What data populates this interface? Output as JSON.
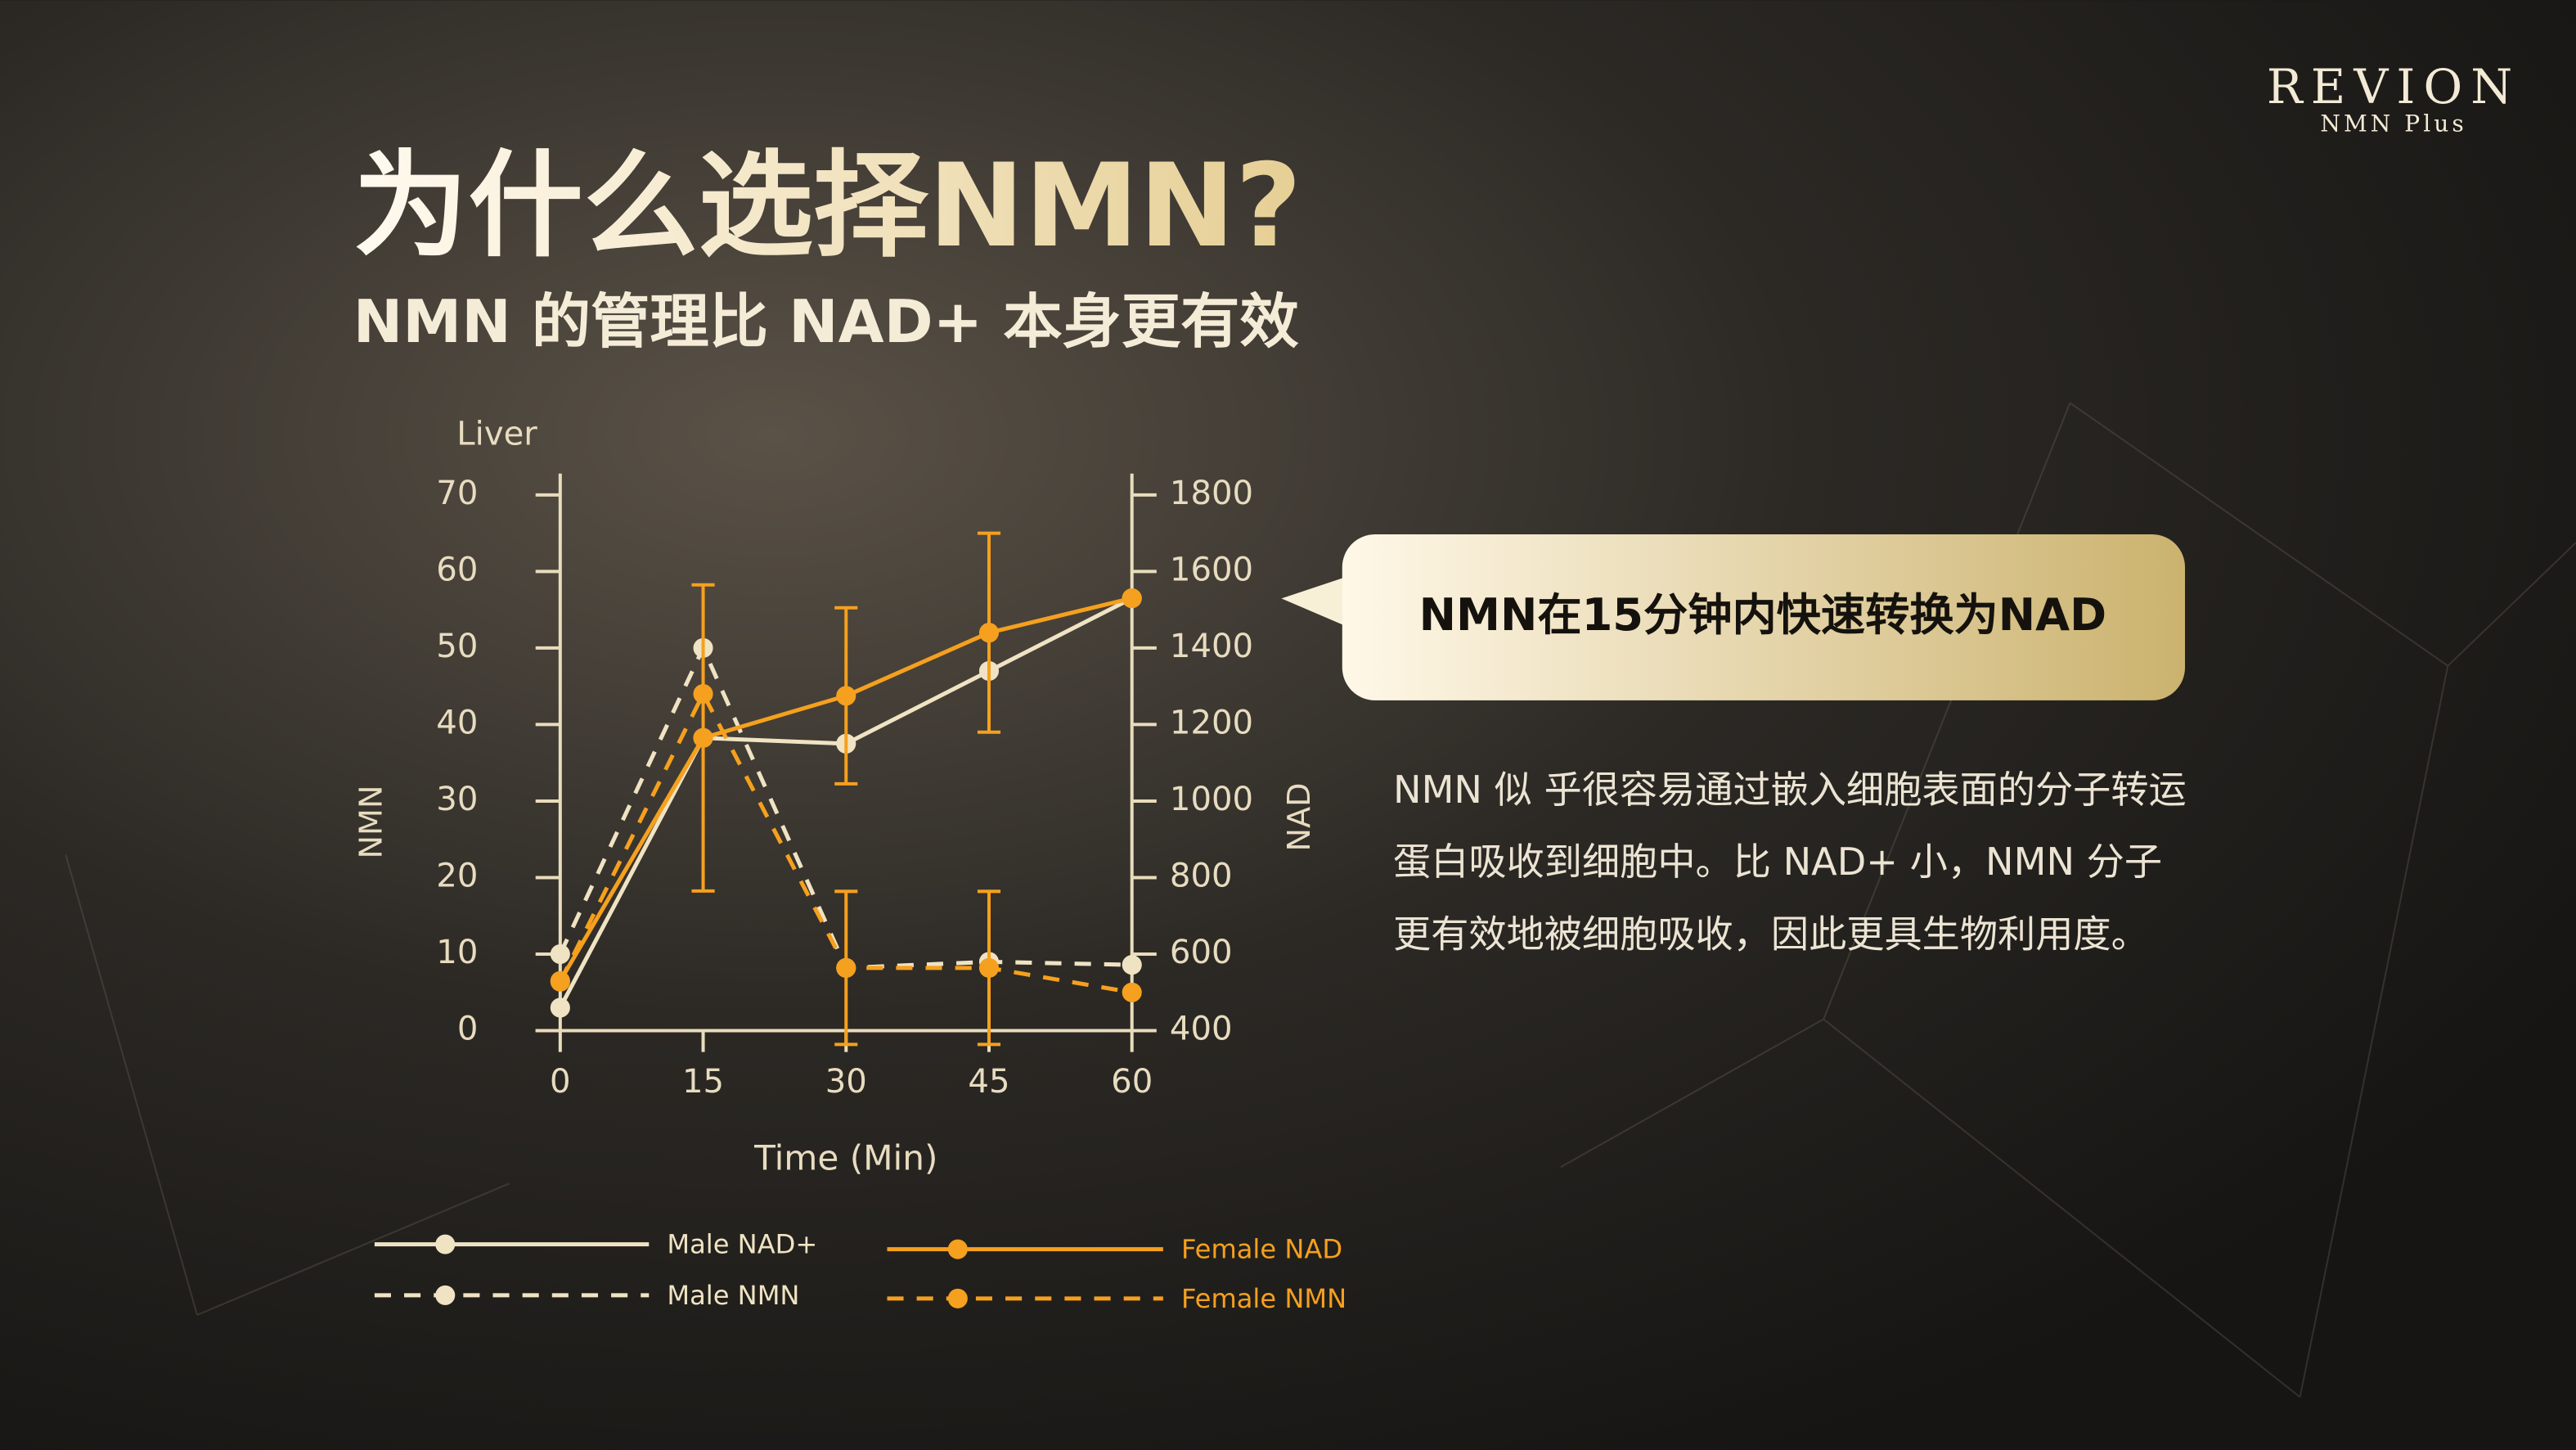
{
  "brand": {
    "name": "REVION",
    "product": "NMN Plus"
  },
  "title": "为什么选择NMN?",
  "subtitle": "NMN 的管理比 NAD+ 本身更有效",
  "callout": "NMN在15分钟内快速转换为NAD",
  "body": [
    "NMN 似 乎很容易通过嵌入细胞表面的分子转运",
    "蛋白吸收到细胞中。比 NAD+ 小，NMN 分子",
    "更有效地被细胞吸收，因此更具生物利用度。"
  ],
  "chart_data": {
    "type": "line",
    "title": "Liver",
    "x_label": "Time (Min)",
    "y_label": "NMN",
    "y2_label": "NAD",
    "x": [
      0,
      15,
      30,
      45,
      60
    ],
    "xlim": [
      0,
      60
    ],
    "xticks": [
      0,
      15,
      30,
      45,
      60
    ],
    "ylim": [
      0,
      70
    ],
    "yticks": [
      0,
      10,
      20,
      30,
      40,
      50,
      60,
      70
    ],
    "y2lim": [
      400,
      1800
    ],
    "y2ticks": [
      400,
      600,
      800,
      1000,
      1200,
      1400,
      1600,
      1800
    ],
    "series": [
      {
        "name": "Male NAD+",
        "color": "#efe3c3",
        "style": "solid",
        "axis": "y2",
        "values": [
          460,
          1165,
          1150,
          1340,
          1530
        ]
      },
      {
        "name": "Male NMN",
        "color": "#efe3c3",
        "style": "dashed",
        "values": [
          10,
          50,
          8.2,
          9,
          8.6
        ]
      },
      {
        "name": "Female NAD",
        "color": "#f5a01e",
        "style": "solid",
        "axis": "y2",
        "values": [
          530,
          1165,
          1275,
          1440,
          1530
        ],
        "errors": [
          null,
          400,
          230,
          260,
          null
        ]
      },
      {
        "name": "Female NMN",
        "color": "#f5a01e",
        "style": "dashed",
        "values": [
          6.4,
          44,
          8.2,
          8.2,
          5
        ],
        "errors": [
          null,
          null,
          10,
          10,
          null
        ]
      }
    ]
  }
}
